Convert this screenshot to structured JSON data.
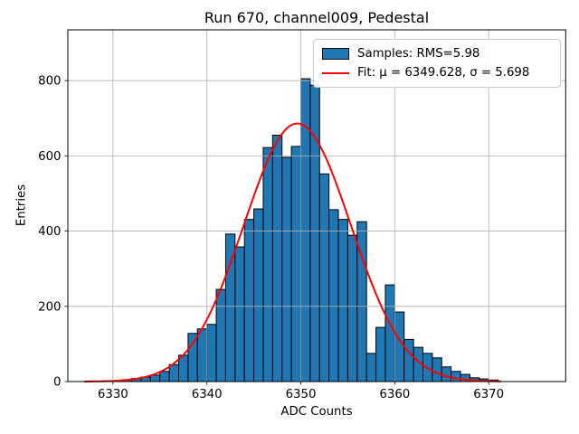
{
  "chart_data": {
    "type": "bar",
    "subtype": "histogram-with-gaussian-fit",
    "title": "Run 670, channel009, Pedestal",
    "xlabel": "ADC Counts",
    "ylabel": "Entries",
    "xlim": [
      6325.2,
      6378.2
    ],
    "ylim": [
      0,
      935
    ],
    "xticks": [
      6330,
      6340,
      6350,
      6360,
      6370
    ],
    "yticks": [
      0,
      200,
      400,
      600,
      800
    ],
    "grid": true,
    "histogram": {
      "bin_start": 6331,
      "bin_width": 1,
      "counts": [
        4,
        8,
        12,
        17,
        27,
        45,
        70,
        128,
        140,
        152,
        245,
        392,
        358,
        431,
        459,
        622,
        655,
        596,
        625,
        805,
        788,
        552,
        457,
        431,
        389,
        425,
        75,
        144,
        257,
        185,
        112,
        91,
        75,
        63,
        39,
        27,
        19,
        10,
        7,
        4
      ]
    },
    "fit_curve": {
      "shape": "gaussian",
      "mu": 6349.628,
      "sigma": 5.698,
      "amplitude": 686,
      "x_start": 6327.0,
      "x_end": 6371.3
    },
    "stats": {
      "rms": 5.98
    },
    "legend": {
      "position": "upper right",
      "entries": [
        {
          "handle": "patch",
          "label": "Samples: RMS=5.98"
        },
        {
          "handle": "line",
          "label": "Fit: μ = 6349.628, σ = 5.698"
        }
      ]
    },
    "colors": {
      "bar_fill": "#1f77b4",
      "bar_edge": "#000000",
      "fit_line": "#ff0000",
      "grid": "#b0b0b0",
      "spine": "#000000",
      "text": "#000000",
      "legend_edge": "#cccccc"
    }
  }
}
